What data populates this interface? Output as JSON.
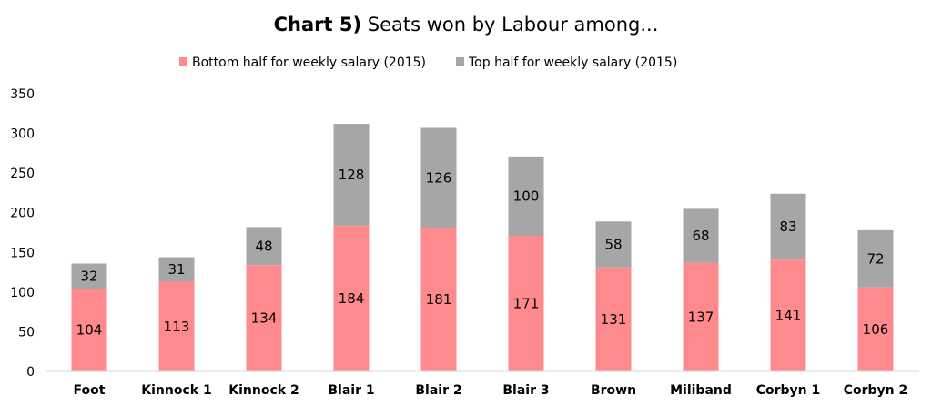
{
  "chart_data": {
    "type": "bar",
    "stacked": true,
    "title_prefix": "Chart 5)",
    "title_main": " Seats won by Labour among...",
    "categories": [
      "Foot",
      "Kinnock 1",
      "Kinnock 2",
      "Blair 1",
      "Blair 2",
      "Blair 3",
      "Brown",
      "Miliband",
      "Corbyn 1",
      "Corbyn 2"
    ],
    "series": [
      {
        "name": "Bottom half for weekly salary (2015)",
        "color": "#ff8a8d",
        "values": [
          104,
          113,
          134,
          184,
          181,
          171,
          131,
          137,
          141,
          106
        ]
      },
      {
        "name": "Top half for weekly salary (2015)",
        "color": "#a6a6a6",
        "values": [
          32,
          31,
          48,
          128,
          126,
          100,
          58,
          68,
          83,
          72
        ]
      }
    ],
    "ylim": [
      0,
      350
    ],
    "yticks": [
      0,
      50,
      100,
      150,
      200,
      250,
      300,
      350
    ],
    "legend_position": "top",
    "grid": false
  }
}
